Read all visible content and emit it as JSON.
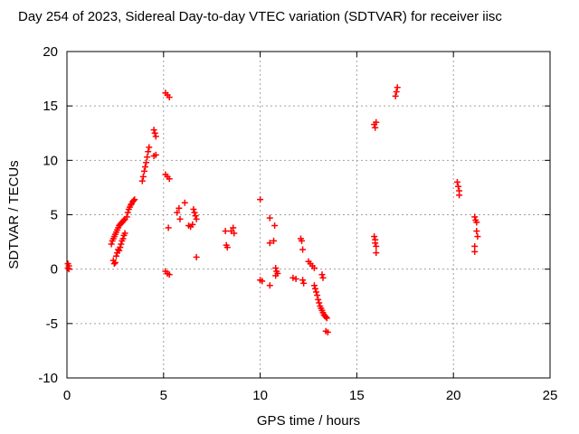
{
  "chart_data": {
    "type": "scatter",
    "title": "Day 254 of 2023, Sidereal Day-to-day VTEC variation (SDTVAR) for receiver iisc",
    "xlabel": "GPS time / hours",
    "ylabel": "SDTVAR / TECUs",
    "xlim": [
      0,
      25
    ],
    "ylim": [
      -10,
      20
    ],
    "xticks": [
      "0",
      "5",
      "10",
      "15",
      "20",
      "25"
    ],
    "yticks": [
      "-10",
      "-5",
      "0",
      "5",
      "10",
      "15",
      "20"
    ],
    "grid": true,
    "marker": "plus",
    "marker_color": "#ff0000",
    "series": [
      {
        "values": [
          [
            0.05,
            0.5
          ],
          [
            0.05,
            0.1
          ],
          [
            0.1,
            0.3
          ],
          [
            0.1,
            0.0
          ],
          [
            2.3,
            2.3
          ],
          [
            2.35,
            2.6
          ],
          [
            2.4,
            2.8
          ],
          [
            2.4,
            0.8
          ],
          [
            2.45,
            0.5
          ],
          [
            2.45,
            3.0
          ],
          [
            2.5,
            3.2
          ],
          [
            2.5,
            0.6
          ],
          [
            2.55,
            3.4
          ],
          [
            2.55,
            1.2
          ],
          [
            2.6,
            3.6
          ],
          [
            2.6,
            1.5
          ],
          [
            2.65,
            3.8
          ],
          [
            2.65,
            1.8
          ],
          [
            2.7,
            4.0
          ],
          [
            2.7,
            1.7
          ],
          [
            2.75,
            4.1
          ],
          [
            2.75,
            2.0
          ],
          [
            2.8,
            4.2
          ],
          [
            2.8,
            2.3
          ],
          [
            2.85,
            4.3
          ],
          [
            2.85,
            2.6
          ],
          [
            2.9,
            4.4
          ],
          [
            2.9,
            2.8
          ],
          [
            2.95,
            4.5
          ],
          [
            2.95,
            3.1
          ],
          [
            3.0,
            4.6
          ],
          [
            3.0,
            3.3
          ],
          [
            3.1,
            4.8
          ],
          [
            3.15,
            5.2
          ],
          [
            3.2,
            5.5
          ],
          [
            3.25,
            5.7
          ],
          [
            3.3,
            5.9
          ],
          [
            3.35,
            6.0
          ],
          [
            3.4,
            6.2
          ],
          [
            3.45,
            6.3
          ],
          [
            3.5,
            6.4
          ],
          [
            3.9,
            8.1
          ],
          [
            3.95,
            8.5
          ],
          [
            4.0,
            9.0
          ],
          [
            4.05,
            9.4
          ],
          [
            4.1,
            9.8
          ],
          [
            4.15,
            10.3
          ],
          [
            4.2,
            10.8
          ],
          [
            4.25,
            11.2
          ],
          [
            4.5,
            12.8
          ],
          [
            4.55,
            12.5
          ],
          [
            4.6,
            12.2
          ],
          [
            4.5,
            10.4
          ],
          [
            4.6,
            10.5
          ],
          [
            5.1,
            16.2
          ],
          [
            5.2,
            16.0
          ],
          [
            5.3,
            15.8
          ],
          [
            5.1,
            8.7
          ],
          [
            5.2,
            8.5
          ],
          [
            5.3,
            8.3
          ],
          [
            5.1,
            -0.2
          ],
          [
            5.2,
            -0.4
          ],
          [
            5.3,
            -0.5
          ],
          [
            5.25,
            3.8
          ],
          [
            5.7,
            5.2
          ],
          [
            5.8,
            5.6
          ],
          [
            5.85,
            4.6
          ],
          [
            6.1,
            6.1
          ],
          [
            6.3,
            4.0
          ],
          [
            6.4,
            3.9
          ],
          [
            6.5,
            4.1
          ],
          [
            6.55,
            5.5
          ],
          [
            6.6,
            5.2
          ],
          [
            6.65,
            4.9
          ],
          [
            6.7,
            4.6
          ],
          [
            6.7,
            1.1
          ],
          [
            8.2,
            3.5
          ],
          [
            8.25,
            2.2
          ],
          [
            8.3,
            2.0
          ],
          [
            8.5,
            3.5
          ],
          [
            8.6,
            3.8
          ],
          [
            8.65,
            3.3
          ],
          [
            10.0,
            6.4
          ],
          [
            10.0,
            -1.0
          ],
          [
            10.1,
            -1.1
          ],
          [
            10.5,
            4.7
          ],
          [
            10.5,
            -1.5
          ],
          [
            10.5,
            2.4
          ],
          [
            10.75,
            4.0
          ],
          [
            10.7,
            2.6
          ],
          [
            10.8,
            0.1
          ],
          [
            10.85,
            -0.2
          ],
          [
            10.9,
            -0.4
          ],
          [
            10.8,
            -0.6
          ],
          [
            11.7,
            -0.8
          ],
          [
            11.85,
            -0.9
          ],
          [
            12.1,
            2.8
          ],
          [
            12.15,
            2.6
          ],
          [
            12.2,
            1.8
          ],
          [
            12.2,
            -1.0
          ],
          [
            12.25,
            -1.3
          ],
          [
            12.5,
            0.7
          ],
          [
            12.6,
            0.5
          ],
          [
            12.7,
            0.3
          ],
          [
            12.8,
            0.1
          ],
          [
            12.8,
            -1.5
          ],
          [
            12.85,
            -1.8
          ],
          [
            12.9,
            -2.1
          ],
          [
            12.95,
            -2.4
          ],
          [
            13.0,
            -2.8
          ],
          [
            13.05,
            -3.1
          ],
          [
            13.1,
            -3.4
          ],
          [
            13.15,
            -3.6
          ],
          [
            13.2,
            -3.8
          ],
          [
            13.25,
            -4.0
          ],
          [
            13.3,
            -4.2
          ],
          [
            13.35,
            -4.3
          ],
          [
            13.4,
            -4.4
          ],
          [
            13.45,
            -4.5
          ],
          [
            13.2,
            -0.5
          ],
          [
            13.25,
            -0.8
          ],
          [
            13.4,
            -5.7
          ],
          [
            13.5,
            -5.8
          ],
          [
            15.9,
            13.3
          ],
          [
            15.95,
            13.0
          ],
          [
            16.0,
            13.5
          ],
          [
            15.9,
            3.0
          ],
          [
            15.95,
            2.7
          ],
          [
            15.95,
            2.4
          ],
          [
            16.0,
            2.1
          ],
          [
            16.0,
            1.5
          ],
          [
            17.0,
            15.9
          ],
          [
            17.05,
            16.3
          ],
          [
            17.1,
            16.7
          ],
          [
            20.2,
            8.0
          ],
          [
            20.25,
            7.6
          ],
          [
            20.3,
            7.2
          ],
          [
            20.3,
            6.8
          ],
          [
            21.1,
            4.8
          ],
          [
            21.15,
            4.5
          ],
          [
            21.2,
            4.3
          ],
          [
            21.1,
            2.1
          ],
          [
            21.1,
            1.6
          ],
          [
            21.2,
            3.5
          ],
          [
            21.25,
            3.0
          ]
        ]
      }
    ]
  }
}
